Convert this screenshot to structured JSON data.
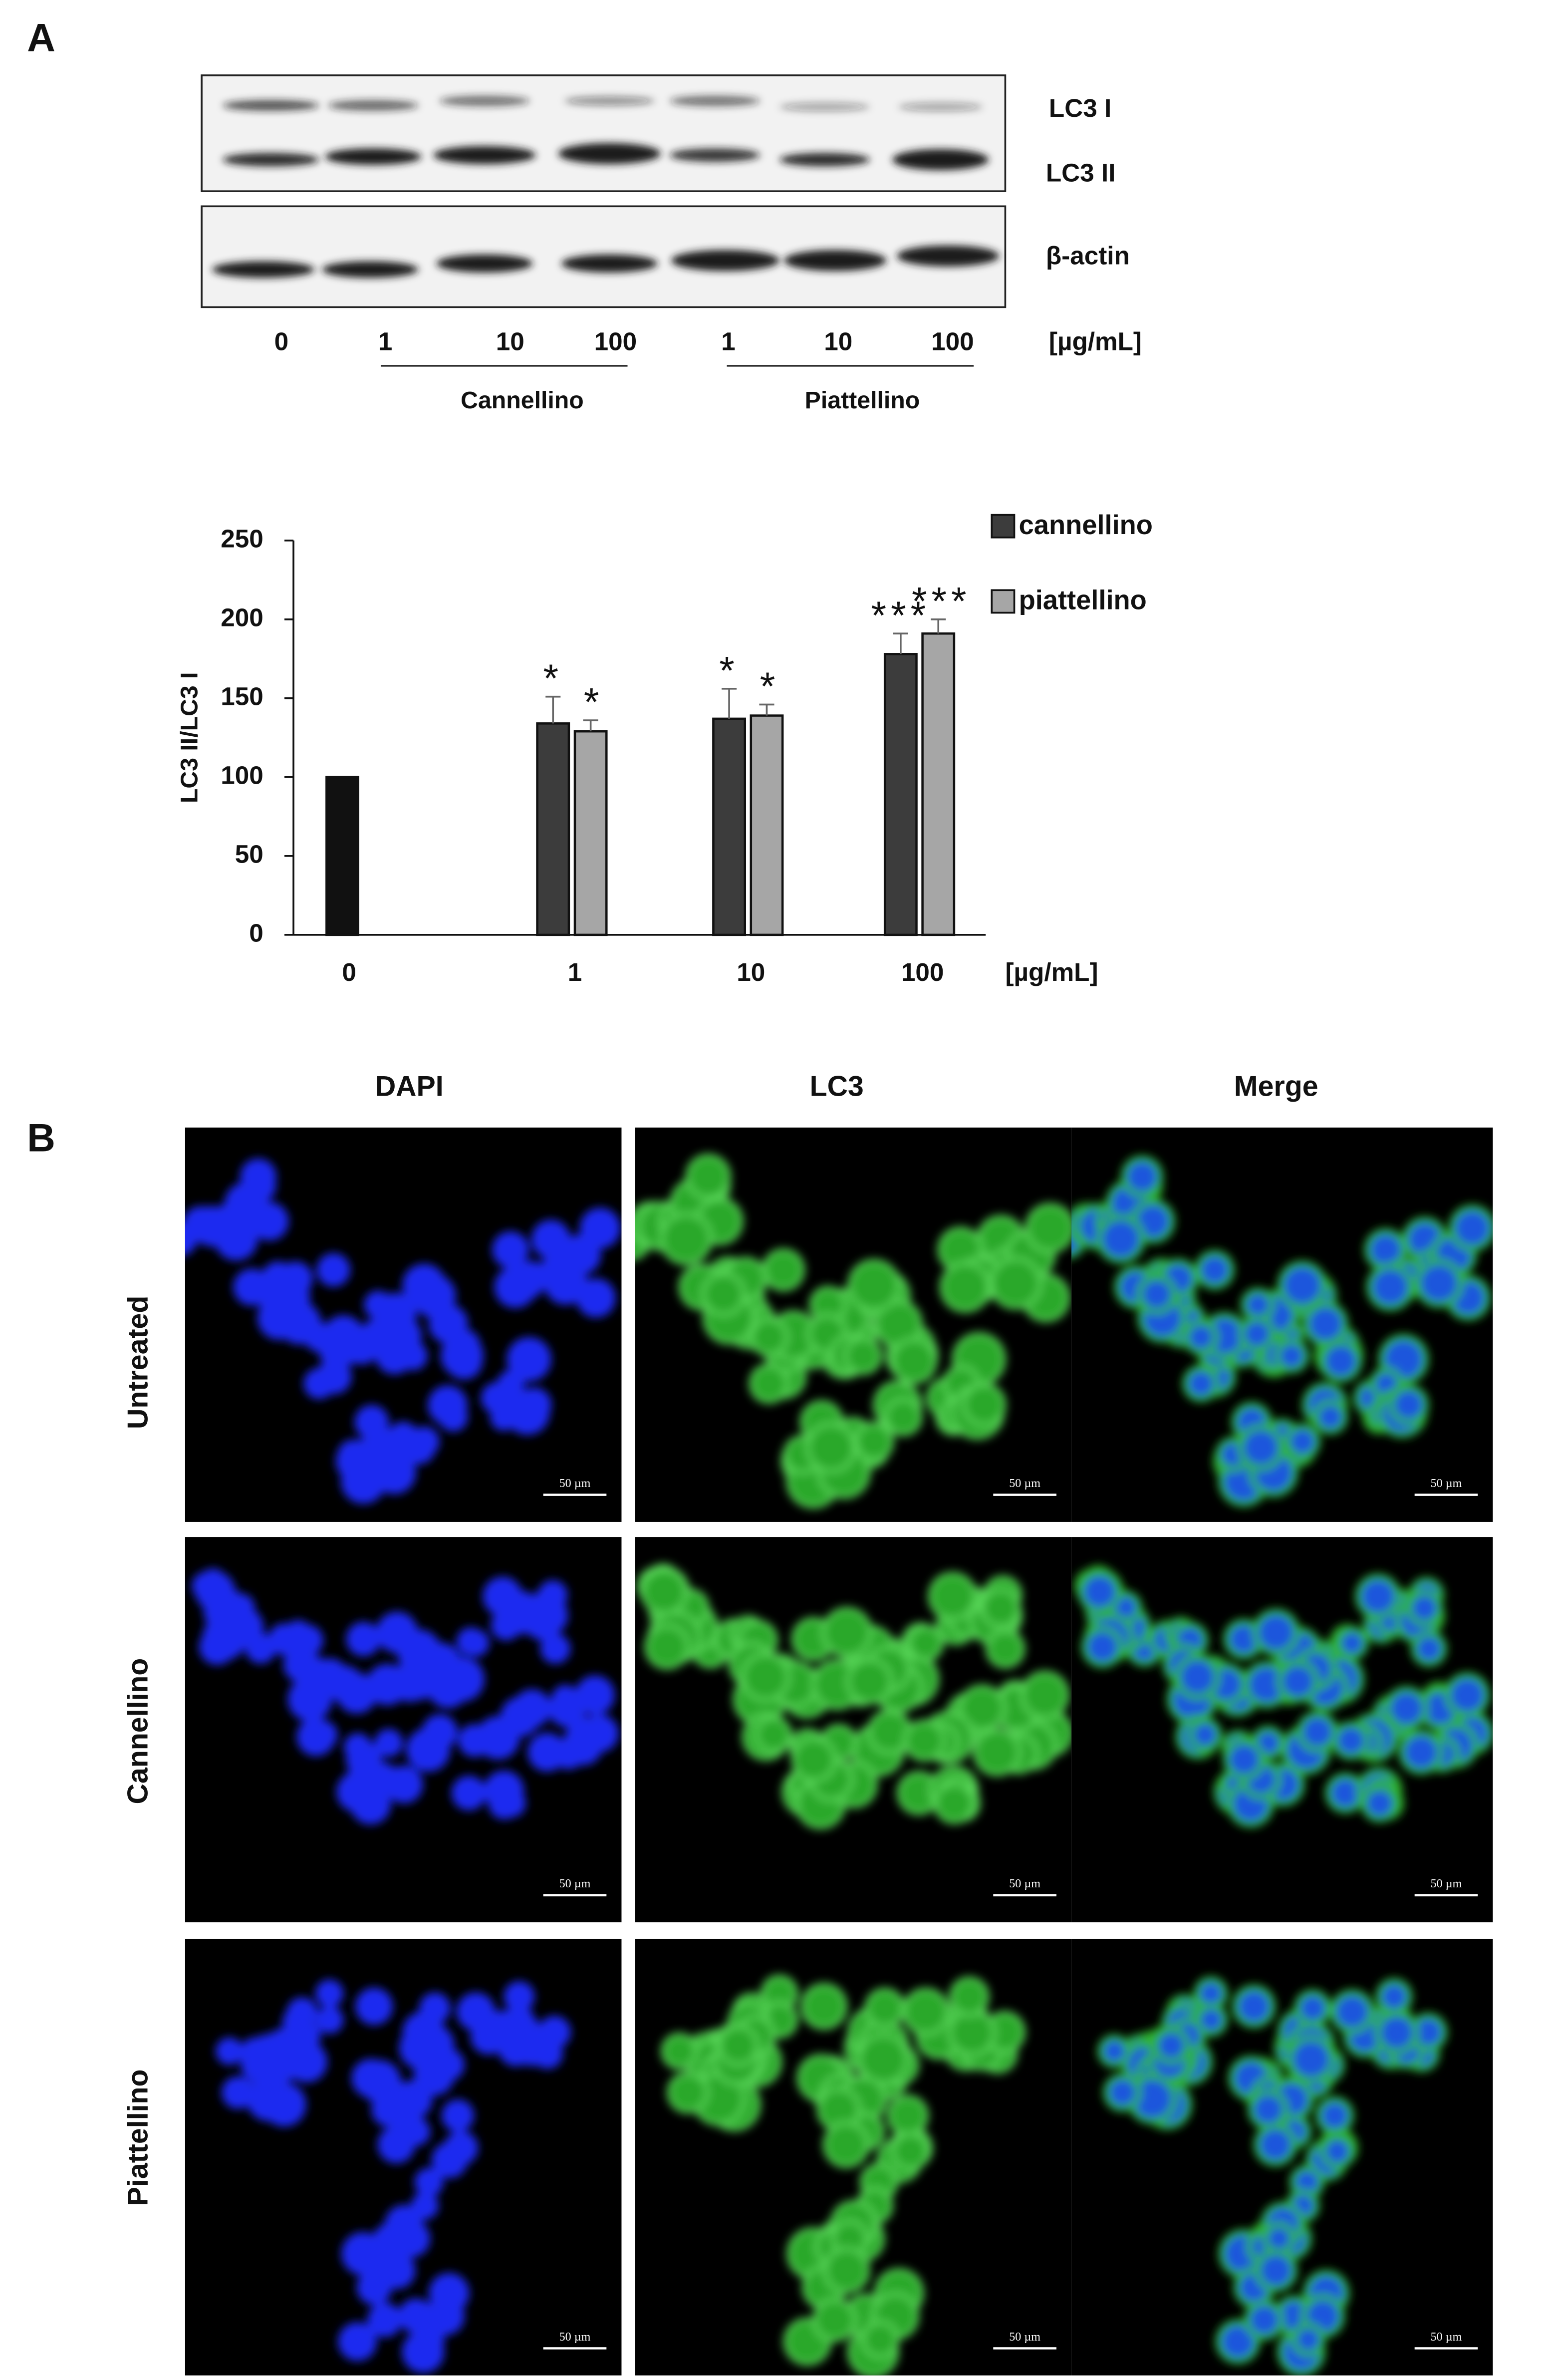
{
  "panel_a": {
    "label": "A",
    "blot": {
      "bands": [
        "LC3 I",
        "LC3 II",
        "β-actin"
      ],
      "lanes": [
        "0",
        "1",
        "10",
        "100",
        "1",
        "10",
        "100"
      ],
      "unit": "[µg/mL]",
      "groups": [
        "Cannellino",
        "Piattellino"
      ]
    }
  },
  "chart_data": {
    "type": "bar",
    "y_label": "LC3 II/LC3 I",
    "x_unit": "[µg/mL]",
    "categories": [
      "0",
      "1",
      "10",
      "100"
    ],
    "series": [
      {
        "color": "#111111",
        "values": [
          100,
          null,
          null,
          null
        ]
      },
      {
        "name": "cannellino",
        "color": "#3c3c3c",
        "values": [
          null,
          134,
          137,
          178
        ],
        "errors": [
          null,
          17,
          19,
          13
        ],
        "significance": [
          null,
          "*",
          "*",
          "***"
        ]
      },
      {
        "name": "piattellino",
        "color": "#a6a6a6",
        "values": [
          null,
          129,
          139,
          191
        ],
        "errors": [
          null,
          7,
          7,
          9
        ],
        "significance": [
          null,
          "*",
          "*",
          "***"
        ]
      }
    ],
    "ylim": [
      0,
      250
    ],
    "yticks": [
      0,
      50,
      100,
      150,
      200,
      250
    ],
    "legend": "upper right"
  },
  "panel_b": {
    "label": "B",
    "columns": [
      "DAPI",
      "LC3",
      "Merge"
    ],
    "rows": [
      "Untreated",
      "Cannellino",
      "Piattellino"
    ],
    "scale_bar": "50 µm"
  }
}
